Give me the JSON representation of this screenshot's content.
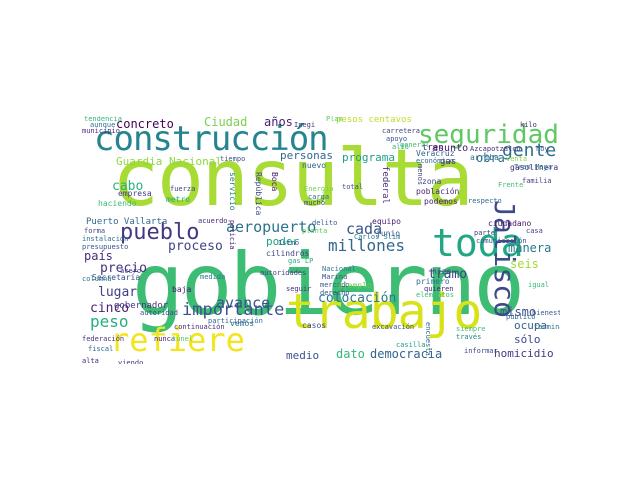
{
  "words": [
    {
      "text": "consulta",
      "color": "#a8db34"
    },
    {
      "text": "gobierno",
      "color": "#3dbc74"
    },
    {
      "text": "trabajo",
      "color": "#d8e219"
    },
    {
      "text": "construcción",
      "color": "#25858e"
    },
    {
      "text": "toda",
      "color": "#22a785"
    },
    {
      "text": "seguridad",
      "color": "#5ec962"
    },
    {
      "text": "refiere",
      "color": "#f2e51d"
    },
    {
      "text": "Jalisco",
      "color": "#3e4989"
    },
    {
      "text": "pueblo",
      "color": "#453781"
    },
    {
      "text": "gente",
      "color": "#2e6f8e"
    },
    {
      "text": "importante",
      "color": "#3b528b"
    },
    {
      "text": "aeropuerto",
      "color": "#2c728e"
    },
    {
      "text": "millones",
      "color": "#31688e"
    },
    {
      "text": "cada",
      "color": "#39568c"
    },
    {
      "text": "colocación",
      "color": "#2a788e"
    },
    {
      "text": "avance",
      "color": "#3a548c"
    },
    {
      "text": "proceso",
      "color": "#404387"
    },
    {
      "text": "peso",
      "color": "#26ad81"
    },
    {
      "text": "cinco",
      "color": "#482475"
    },
    {
      "text": "lugar",
      "color": "#433e85"
    },
    {
      "text": "precio",
      "color": "#46327e"
    },
    {
      "text": "país",
      "color": "#472d7b"
    },
    {
      "text": "cabo",
      "color": "#2ab07f"
    },
    {
      "text": "concreto",
      "color": "#440154"
    },
    {
      "text": "Ciudad",
      "color": "#7ad151"
    },
    {
      "text": "años",
      "color": "#481f70"
    },
    {
      "text": "Guardia Nacional",
      "color": "#8fd744"
    },
    {
      "text": "personas",
      "color": "#31688e"
    },
    {
      "text": "programa",
      "color": "#1f9e89"
    },
    {
      "text": "obra",
      "color": "#2d708e"
    },
    {
      "text": "manera",
      "color": "#2a788e"
    },
    {
      "text": "seis",
      "color": "#a2da37"
    },
    {
      "text": "tramo",
      "color": "#414487"
    },
    {
      "text": "mismo",
      "color": "#3b528b"
    },
    {
      "text": "ocupa",
      "color": "#34618d"
    },
    {
      "text": "sólo",
      "color": "#3f4889"
    },
    {
      "text": "homicidio",
      "color": "#453882"
    },
    {
      "text": "dato",
      "color": "#35b779"
    },
    {
      "text": "democracia",
      "color": "#33638d"
    },
    {
      "text": "medio",
      "color": "#3b528b"
    },
    {
      "text": "poder",
      "color": "#20a386"
    },
    {
      "text": "asunto",
      "color": "#481b6d"
    },
    {
      "text": "Puerto Vallarta",
      "color": "#31688e"
    },
    {
      "text": "Secretaría",
      "color": "#3d4e8a"
    },
    {
      "text": "gobernador",
      "color": "#46337e"
    },
    {
      "text": "ciudadano",
      "color": "#481769"
    },
    {
      "text": "pesos centavos",
      "color": "#bade28"
    },
    {
      "text": "vemos",
      "color": "#2c728e"
    },
    {
      "text": "casos",
      "color": "#3c4f8a"
    },
    {
      "text": "cilindros",
      "color": "#414487"
    },
    {
      "text": "tren",
      "color": "#48186a"
    },
    {
      "text": "gas",
      "color": "#46337e"
    },
    {
      "text": "Veracruz",
      "color": "#34618d"
    },
    {
      "text": "población",
      "color": "#482878"
    },
    {
      "text": "zona",
      "color": "#3e4989"
    },
    {
      "text": "podemos",
      "color": "#481f70"
    },
    {
      "text": "arriba",
      "color": "#2c728e"
    },
    {
      "text": "gasolinera",
      "color": "#472d7b"
    },
    {
      "text": "hizo",
      "color": "#3b528b"
    },
    {
      "text": "primero",
      "color": "#2c728e"
    },
    {
      "text": "junio",
      "color": "#3b528b"
    },
    {
      "text": "equipo",
      "color": "#482475"
    },
    {
      "text": "nuevo",
      "color": "#32658e"
    },
    {
      "text": "federal",
      "color": "#46337e"
    },
    {
      "text": "República",
      "color": "#3e4989"
    },
    {
      "text": "Boca",
      "color": "#481b6d"
    },
    {
      "text": "servicio",
      "color": "#26818e"
    },
    {
      "text": "acuerdo",
      "color": "#482878"
    },
    {
      "text": "fuerza",
      "color": "#404387"
    },
    {
      "text": "metro",
      "color": "#25ab82"
    },
    {
      "text": "haciendo",
      "color": "#3dbc74"
    },
    {
      "text": "empresa",
      "color": "#433e85"
    },
    {
      "text": "instalación",
      "color": "#2e6f8e"
    },
    {
      "text": "forma",
      "color": "#3e4989"
    },
    {
      "text": "columna",
      "color": "#2a788e"
    },
    {
      "text": "acero",
      "color": "#404387"
    },
    {
      "text": "baja",
      "color": "#481b6d"
    },
    {
      "text": "medida",
      "color": "#2a788e"
    },
    {
      "text": "continuación",
      "color": "#472c7a"
    },
    {
      "text": "participación",
      "color": "#31688e"
    },
    {
      "text": "nunca",
      "color": "#481769"
    },
    {
      "text": "autoridad",
      "color": "#3e4989"
    },
    {
      "text": "fiscal",
      "color": "#31688e"
    },
    {
      "text": "alta",
      "color": "#482878"
    },
    {
      "text": "viendo",
      "color": "#46337e"
    },
    {
      "text": "túnel",
      "color": "#5ec962"
    },
    {
      "text": "autoridades",
      "color": "#404387"
    },
    {
      "text": "gas LP",
      "color": "#29af7f"
    },
    {
      "text": "planta",
      "color": "#5ec962"
    },
    {
      "text": "mercado",
      "color": "#38598c"
    },
    {
      "text": "derecho",
      "color": "#3a548c"
    },
    {
      "text": "ejemplo",
      "color": "#6ece58"
    },
    {
      "text": "excavación",
      "color": "#3b528b"
    },
    {
      "text": "casilla",
      "color": "#1f9a8a"
    },
    {
      "text": "quieren",
      "color": "#482475"
    },
    {
      "text": "elementos",
      "color": "#3bbb75"
    },
    {
      "text": "siempre",
      "color": "#42be71"
    },
    {
      "text": "través",
      "color": "#27808e"
    },
    {
      "text": "informar",
      "color": "#3e4989"
    },
    {
      "text": "público",
      "color": "#31688e"
    },
    {
      "text": "terminar",
      "color": "#2c728e"
    },
    {
      "text": "bienestar",
      "color": "#38588c"
    },
    {
      "text": "comunicación",
      "color": "#3b528b"
    },
    {
      "text": "casa",
      "color": "#433e85"
    },
    {
      "text": "igual",
      "color": "#35b779"
    },
    {
      "text": "respecto",
      "color": "#33638d"
    },
    {
      "text": "familia",
      "color": "#433e85"
    },
    {
      "text": "Frente",
      "color": "#3dbc74"
    },
    {
      "text": "Tren Maya",
      "color": "#2a788e"
    },
    {
      "text": "hoy",
      "color": "#39568c"
    },
    {
      "text": "kilo",
      "color": "#482475"
    },
    {
      "text": "carretera",
      "color": "#404387"
    },
    {
      "text": "apoyo",
      "color": "#3b528b"
    },
    {
      "text": "alto",
      "color": "#2ab07f"
    },
    {
      "text": "económico",
      "color": "#31688e"
    },
    {
      "text": "Azcapotzalco",
      "color": "#472d7b"
    },
    {
      "text": "venta",
      "color": "#8fd744"
    },
    {
      "text": "tiempo",
      "color": "#39568c"
    },
    {
      "text": "Inegi",
      "color": "#453781"
    },
    {
      "text": "Plan",
      "color": "#5ec962"
    },
    {
      "text": "municipio",
      "color": "#472d7b"
    },
    {
      "text": "aunque",
      "color": "#2c728e"
    },
    {
      "text": "tendencia",
      "color": "#35b779"
    },
    {
      "text": "presupuesto",
      "color": "#3b528b"
    },
    {
      "text": "federación",
      "color": "#46337e"
    },
    {
      "text": "Istmo",
      "color": "#33638d"
    },
    {
      "text": "total",
      "color": "#3b528b"
    },
    {
      "text": "carga",
      "color": "#2c728e"
    },
    {
      "text": "Energía",
      "color": "#7ad151"
    },
    {
      "text": "mucho",
      "color": "#3e4989"
    },
    {
      "text": "Nacional",
      "color": "#2a788e"
    },
    {
      "text": "Marina",
      "color": "#3a548c"
    },
    {
      "text": "seguir",
      "color": "#472d7b"
    },
    {
      "text": "parte",
      "color": "#433e85"
    },
    {
      "text": "Carlos Slim",
      "color": "#2a788e"
    },
    {
      "text": "delito",
      "color": "#33638d"
    },
    {
      "text": "general",
      "color": "#3dbc74"
    },
    {
      "text": "encuesta",
      "color": "#31688e"
    },
    {
      "text": "policía",
      "color": "#482475"
    },
    {
      "text": "menos",
      "color": "#3e4989"
    }
  ]
}
